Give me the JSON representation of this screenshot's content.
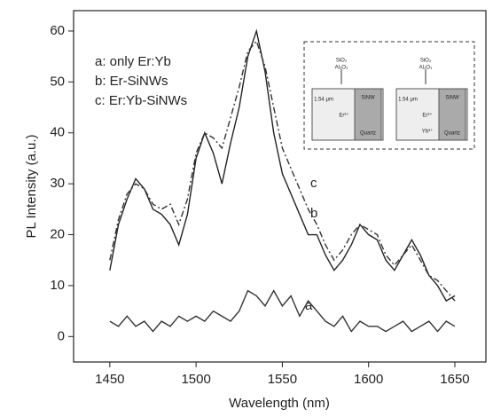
{
  "chart_data": {
    "type": "line",
    "x_label": "Wavelength (nm)",
    "y_label": "PL Intensity (a.u.)",
    "x": [
      1450,
      1455,
      1460,
      1465,
      1470,
      1475,
      1480,
      1485,
      1490,
      1495,
      1500,
      1505,
      1510,
      1515,
      1520,
      1525,
      1530,
      1535,
      1540,
      1545,
      1550,
      1555,
      1560,
      1565,
      1570,
      1575,
      1580,
      1585,
      1590,
      1595,
      1600,
      1605,
      1610,
      1615,
      1620,
      1625,
      1630,
      1635,
      1640,
      1645,
      1650
    ],
    "series": [
      {
        "name": "a: only Er:Yb",
        "tag": "a",
        "color": "#333333",
        "style": "solid",
        "values": [
          3,
          2,
          4,
          2,
          3,
          1,
          3,
          2,
          4,
          3,
          4,
          3,
          5,
          4,
          3,
          5,
          9,
          8,
          6,
          9,
          6,
          8,
          4,
          7,
          5,
          3,
          2,
          4,
          1,
          3,
          2,
          2,
          1,
          2,
          3,
          1,
          2,
          3,
          1,
          3,
          2
        ]
      },
      {
        "name": "b: Er-SiNWs",
        "tag": "b",
        "color": "#222222",
        "style": "solid",
        "values": [
          13,
          22,
          27,
          31,
          29,
          25,
          24,
          22,
          18,
          24,
          35,
          40,
          36,
          30,
          38,
          45,
          55,
          60,
          52,
          40,
          32,
          28,
          24,
          20,
          20,
          16,
          13,
          15,
          18,
          22,
          20,
          19,
          15,
          13,
          16,
          19,
          16,
          12,
          10,
          7,
          8
        ]
      },
      {
        "name": "c: Er:Yb-SiNWs",
        "tag": "c",
        "color": "#333333",
        "style": "dashdot",
        "values": [
          15,
          23,
          28,
          30,
          29,
          26,
          25,
          26,
          22,
          27,
          36,
          40,
          39,
          37,
          43,
          49,
          56,
          58,
          53,
          45,
          37,
          33,
          29,
          25,
          22,
          18,
          15,
          17,
          20,
          22,
          21,
          20,
          16,
          14,
          16,
          18,
          15,
          12,
          11,
          9,
          7
        ]
      }
    ],
    "xlim": [
      1429,
      1668
    ],
    "ylim": [
      -5,
      64
    ],
    "xticks": [
      1450,
      1500,
      1550,
      1600,
      1650
    ],
    "yticks": [
      0,
      10,
      20,
      30,
      40,
      50,
      60
    ]
  },
  "inset": {
    "labels": [
      "SiO₂",
      "Al₂O₃",
      "1.54 μm",
      "Er³⁺",
      "SiNW",
      "Quartz",
      "SiO₂",
      "Al₂O₃",
      "1.54 μm",
      "Er³⁺",
      "Yb³⁺",
      "SiNW",
      "Quartz"
    ]
  }
}
